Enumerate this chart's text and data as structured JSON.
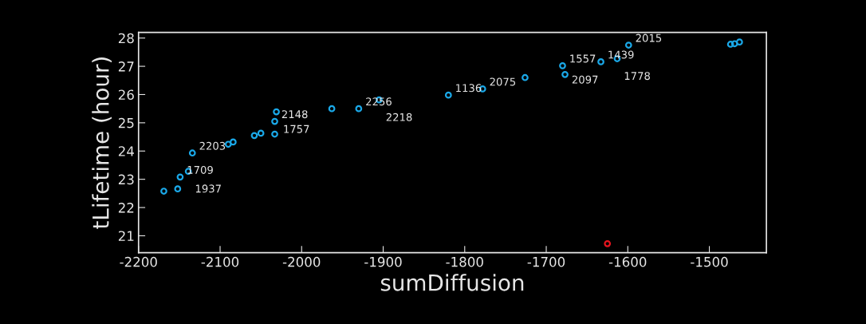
{
  "chart_data": {
    "type": "scatter",
    "xlabel": "sumDiffusion",
    "ylabel": "tLifetime (hour)",
    "xlim": [
      -2200,
      -1430
    ],
    "ylim": [
      20.4,
      28.2
    ],
    "xticks": [
      -2200,
      -2100,
      -2000,
      -1900,
      -1800,
      -1700,
      -1600,
      -1500
    ],
    "yticks": [
      21,
      22,
      23,
      24,
      25,
      26,
      27,
      28
    ],
    "grid": false,
    "marker": "circle",
    "series": [
      {
        "color": "#1aa8e8",
        "x": [
          -2169,
          -2152,
          -2149,
          -2139,
          -2134,
          -2090,
          -2084,
          -2058,
          -2050,
          -2033,
          -2033,
          -2031,
          -1963,
          -1930,
          -1905,
          -1820,
          -1778,
          -1726,
          -1680,
          -1677,
          -1633,
          -1613,
          -1599,
          -1474,
          -1469,
          -1463
        ],
        "values": [
          22.58,
          22.66,
          23.08,
          23.28,
          23.93,
          24.24,
          24.32,
          24.55,
          24.63,
          24.6,
          25.05,
          25.39,
          25.5,
          25.5,
          25.81,
          25.98,
          26.2,
          26.6,
          27.02,
          26.71,
          27.16,
          27.27,
          27.75,
          27.78,
          27.8,
          27.86
        ]
      },
      {
        "color": "#e8141e",
        "x": [
          -1625
        ],
        "values": [
          20.72
        ]
      }
    ],
    "annotations": [
      {
        "text": "1709",
        "x": -2149,
        "y": 23.08
      },
      {
        "text": "1937",
        "x": -2139,
        "y": 23.28
      },
      {
        "text": "2203",
        "x": -2134,
        "y": 23.93
      },
      {
        "text": "2148",
        "x": -2033,
        "y": 25.05
      },
      {
        "text": "1757",
        "x": -2031,
        "y": 25.39
      },
      {
        "text": "2256",
        "x": -1930,
        "y": 25.5
      },
      {
        "text": "2218",
        "x": -1905,
        "y": 25.81
      },
      {
        "text": "1136",
        "x": -1820,
        "y": 25.98
      },
      {
        "text": "2075",
        "x": -1778,
        "y": 26.2
      },
      {
        "text": "1557",
        "x": -1680,
        "y": 27.02
      },
      {
        "text": "2097",
        "x": -1677,
        "y": 26.71
      },
      {
        "text": "1439",
        "x": -1633,
        "y": 27.16
      },
      {
        "text": "1778",
        "x": -1613,
        "y": 27.27
      },
      {
        "text": "2015",
        "x": -1599,
        "y": 27.75
      }
    ]
  }
}
